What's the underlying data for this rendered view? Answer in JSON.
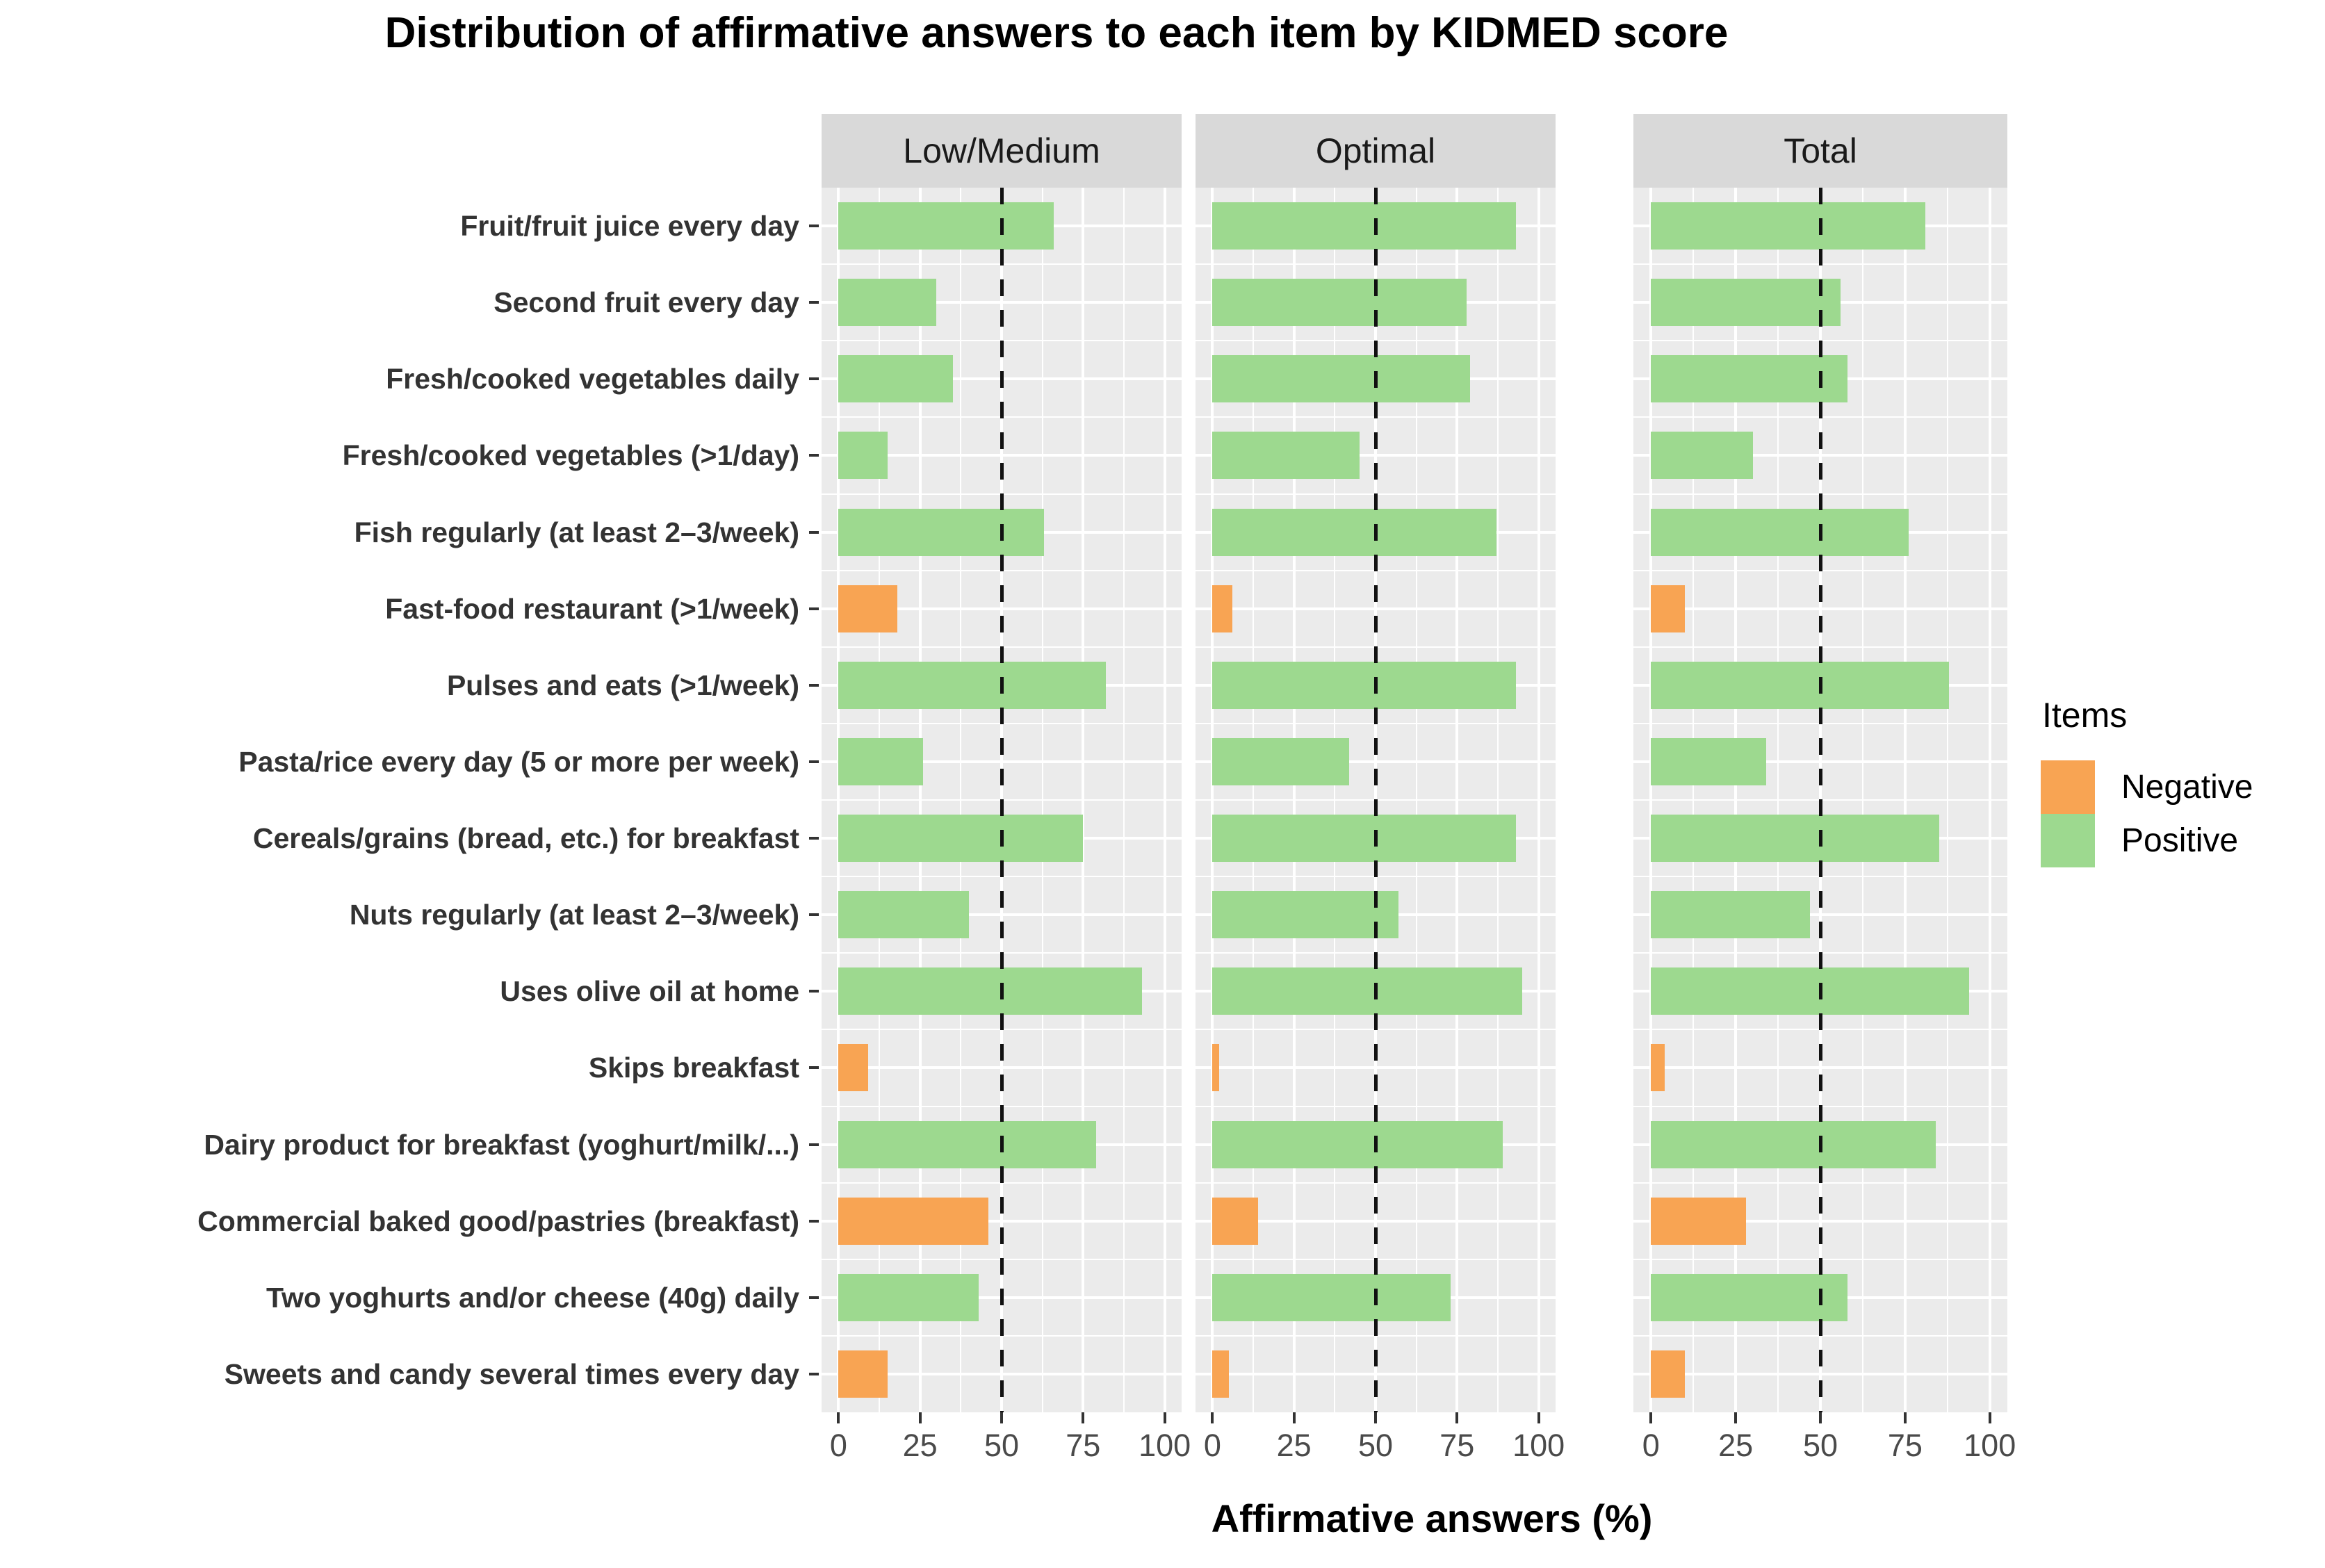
{
  "title": "Distribution of affirmative answers to each item by KIDMED score",
  "xlabel": "Affirmative answers (%)",
  "legend": {
    "title": "Items",
    "entries": [
      {
        "label": "Negative",
        "color": "#F8A453"
      },
      {
        "label": "Positive",
        "color": "#9DD98F"
      }
    ]
  },
  "chart_data": {
    "type": "bar",
    "orientation": "horizontal",
    "title": "Distribution of affirmative answers to each item by KIDMED score",
    "xlabel": "Affirmative answers (%)",
    "facets": [
      "Low/Medium",
      "Optimal",
      "Total"
    ],
    "x_ticks": [
      0,
      25,
      50,
      75,
      100
    ],
    "xlim": [
      0,
      100
    ],
    "reference_line_x": 50,
    "grid": "on",
    "legend_position": "right",
    "colors": {
      "Negative": "#F8A453",
      "Positive": "#9DD98F"
    },
    "panel_background": "#ebebeb",
    "strip_background": "#d9d9d9",
    "categories": [
      "Fruit/fruit juice every day",
      "Second fruit every day",
      "Fresh/cooked vegetables daily",
      "Fresh/cooked vegetables (>1/day)",
      "Fish regularly (at least 2–3/week)",
      "Fast-food restaurant (>1/week)",
      "Pulses and eats (>1/week)",
      "Pasta/rice every day (5 or more per week)",
      "Cereals/grains (bread, etc.) for breakfast",
      "Nuts regularly (at least 2–3/week)",
      "Uses olive oil at home",
      "Skips breakfast",
      "Dairy product for breakfast (yoghurt/milk/...)",
      "Commercial baked good/pastries (breakfast)",
      "Two yoghurts and/or cheese (40g) daily",
      "Sweets and candy several times every day"
    ],
    "item_polarity": [
      "Positive",
      "Positive",
      "Positive",
      "Positive",
      "Positive",
      "Negative",
      "Positive",
      "Positive",
      "Positive",
      "Positive",
      "Positive",
      "Negative",
      "Positive",
      "Negative",
      "Positive",
      "Negative"
    ],
    "series": [
      {
        "name": "Low/Medium",
        "values": [
          66,
          30,
          35,
          15,
          63,
          18,
          82,
          26,
          75,
          40,
          93,
          9,
          79,
          46,
          43,
          15
        ]
      },
      {
        "name": "Optimal",
        "values": [
          93,
          78,
          79,
          45,
          87,
          6,
          93,
          42,
          93,
          57,
          95,
          2,
          89,
          14,
          73,
          5
        ]
      },
      {
        "name": "Total",
        "values": [
          81,
          56,
          58,
          30,
          76,
          10,
          88,
          34,
          85,
          47,
          94,
          4,
          84,
          28,
          58,
          10
        ]
      }
    ]
  }
}
